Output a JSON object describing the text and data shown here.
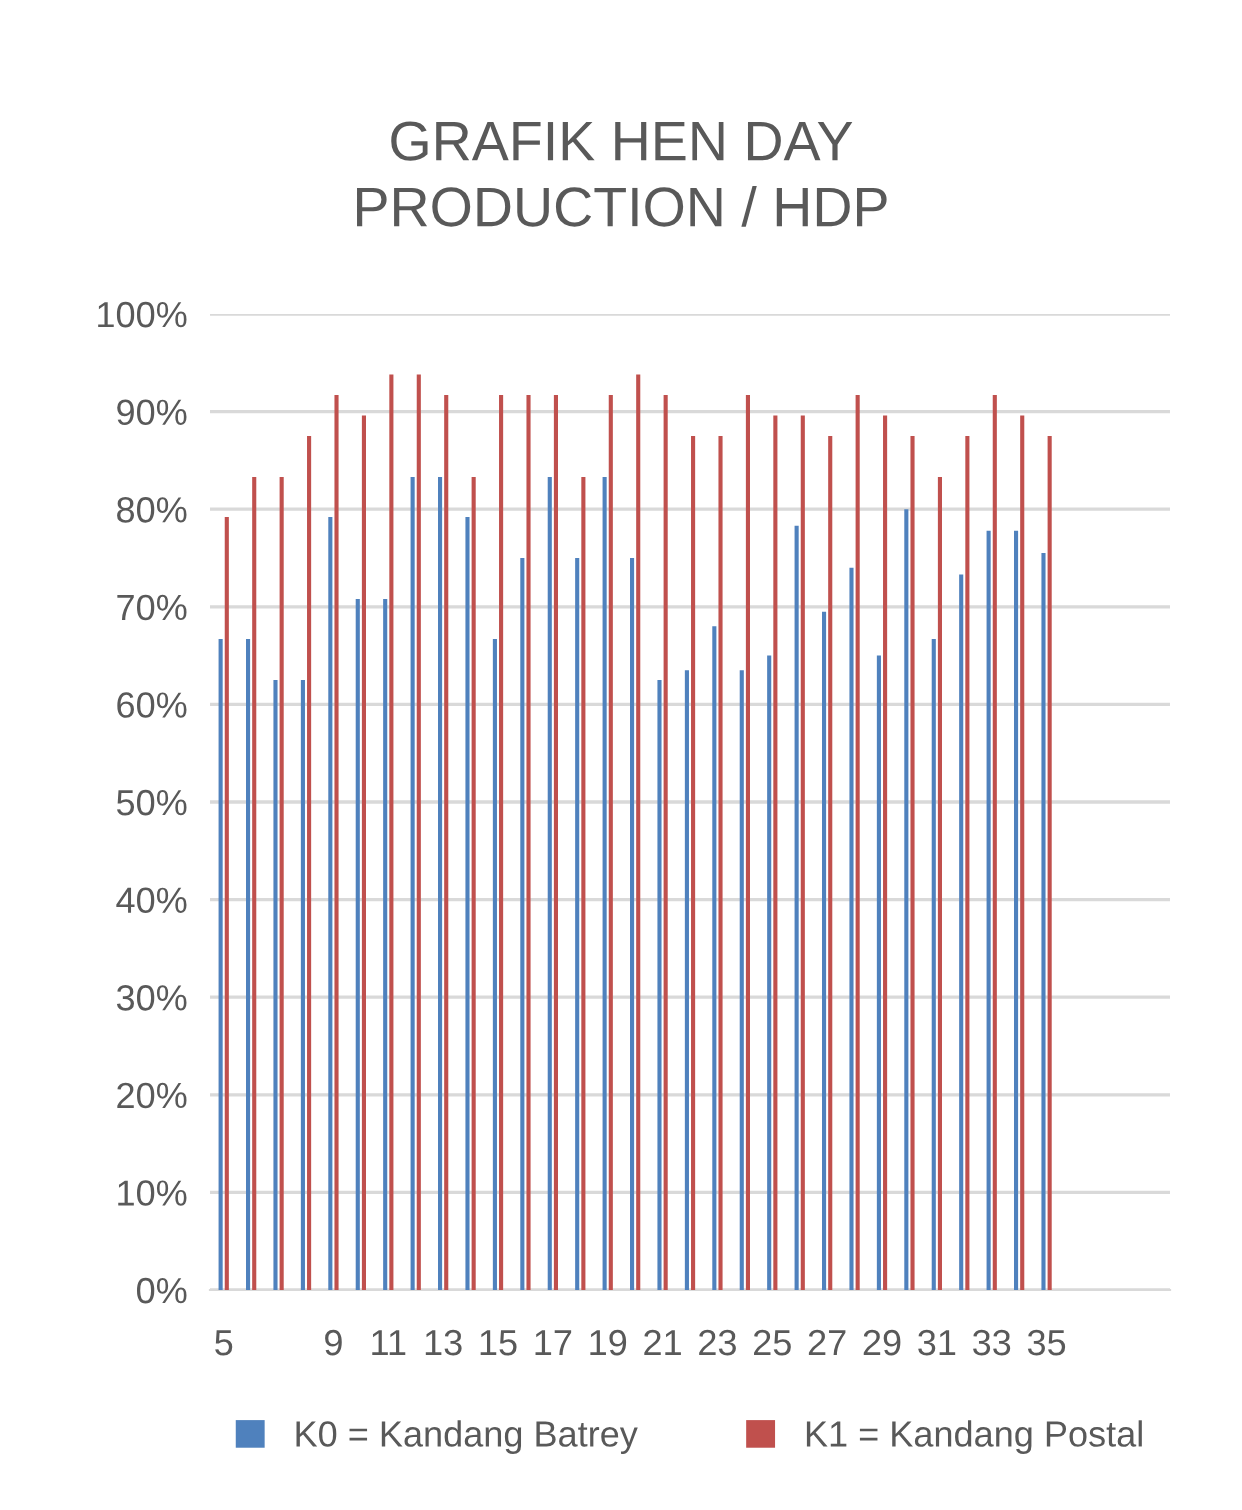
{
  "chart_data": {
    "type": "bar",
    "title": "GRAFIK HEN DAY\nPRODUCTION / HDP",
    "categories": [
      "5",
      null,
      null,
      null,
      "9",
      null,
      "11",
      null,
      "13",
      null,
      "15",
      null,
      "17",
      null,
      "19",
      null,
      "21",
      null,
      "23",
      null,
      "25",
      null,
      "27",
      null,
      "29",
      null,
      "31",
      null,
      "33",
      null,
      "35",
      null,
      null,
      null,
      null
    ],
    "series": [
      {
        "name": "K0 = Kandang Batrey",
        "color": "#4f81bd",
        "values": [
          66.7,
          66.7,
          62.5,
          62.5,
          79.2,
          70.8,
          70.8,
          83.3,
          83.3,
          79.2,
          66.7,
          75,
          83.3,
          75,
          83.3,
          75,
          62.5,
          63.5,
          68,
          63.5,
          65,
          78.3,
          69.5,
          74,
          65,
          80,
          66.7,
          73.3,
          77.8,
          77.8,
          75.5,
          null,
          null,
          null,
          null
        ]
      },
      {
        "name": "K1 = Kandang Postal",
        "color": "#c0504d",
        "values": [
          79.2,
          83.3,
          83.3,
          87.5,
          91.7,
          89.6,
          93.8,
          93.8,
          91.7,
          83.3,
          91.7,
          91.7,
          91.7,
          83.3,
          91.7,
          93.8,
          91.7,
          87.5,
          87.5,
          91.7,
          89.6,
          89.6,
          87.5,
          91.7,
          89.6,
          87.5,
          83.3,
          87.5,
          91.7,
          89.6,
          87.5,
          null,
          null,
          null,
          null
        ]
      }
    ],
    "ylim": [
      0,
      100
    ],
    "yticks": [
      {
        "value": 0,
        "label": "0%"
      },
      {
        "value": 10,
        "label": "10%"
      },
      {
        "value": 20,
        "label": "20%"
      },
      {
        "value": 30,
        "label": "30%"
      },
      {
        "value": 40,
        "label": "40%"
      },
      {
        "value": 50,
        "label": "50%"
      },
      {
        "value": 60,
        "label": "60%"
      },
      {
        "value": 70,
        "label": "70%"
      },
      {
        "value": 80,
        "label": "80%"
      },
      {
        "value": 90,
        "label": "90%"
      },
      {
        "value": 100,
        "label": "100%"
      }
    ],
    "grid": "y",
    "legend": "bottom"
  }
}
